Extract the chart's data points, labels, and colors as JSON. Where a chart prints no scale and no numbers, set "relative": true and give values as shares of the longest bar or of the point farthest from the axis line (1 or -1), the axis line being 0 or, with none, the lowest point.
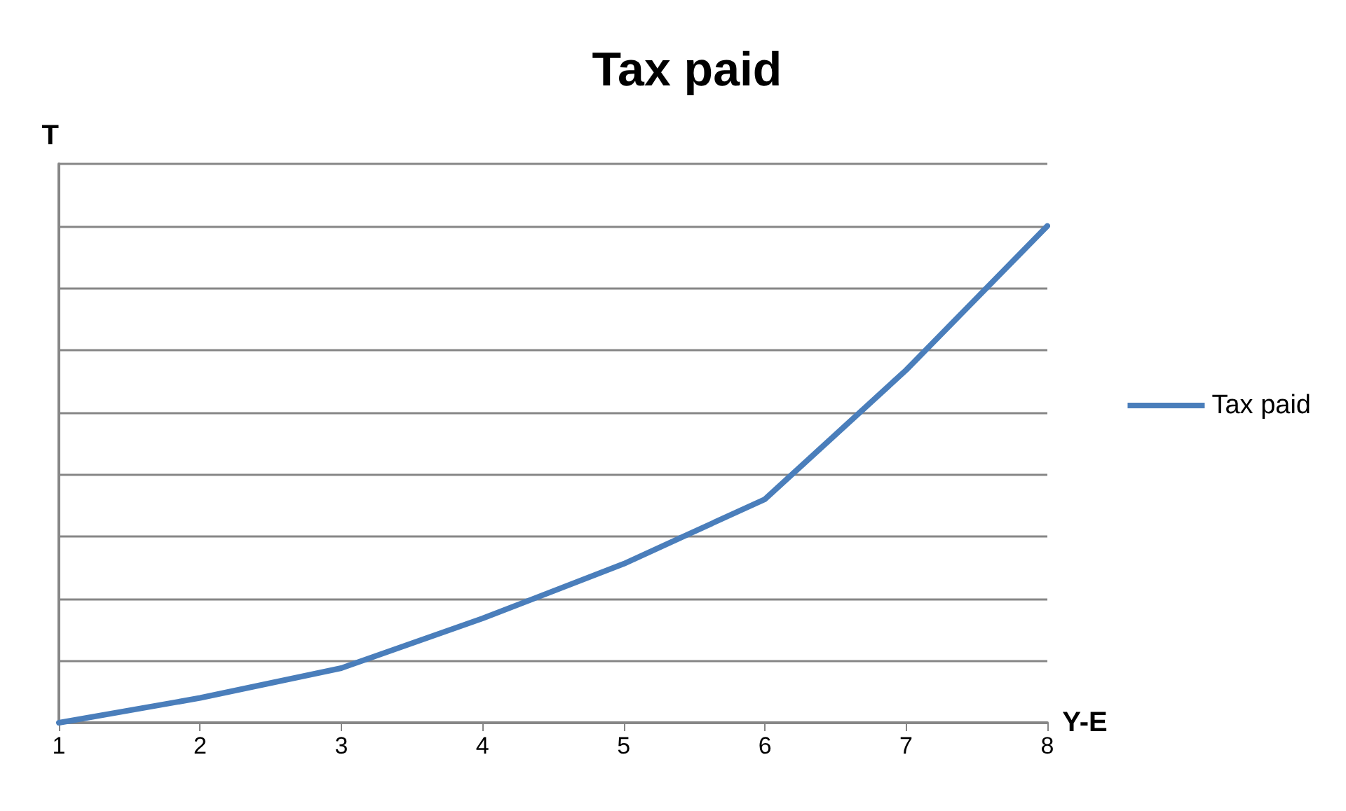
{
  "chart_data": {
    "type": "line",
    "title": "Tax paid",
    "xlabel": "Y-E",
    "ylabel": "T",
    "relative": true,
    "categories": [
      "1",
      "2",
      "3",
      "4",
      "5",
      "6",
      "7",
      "8"
    ],
    "series": [
      {
        "name": "Tax paid",
        "color": "#4a7ebb",
        "values": [
          0,
          0.05,
          0.11,
          0.21,
          0.32,
          0.45,
          0.71,
          1
        ]
      }
    ],
    "grid": "y",
    "legend": "right",
    "marker": "none",
    "line_style": "solid"
  }
}
